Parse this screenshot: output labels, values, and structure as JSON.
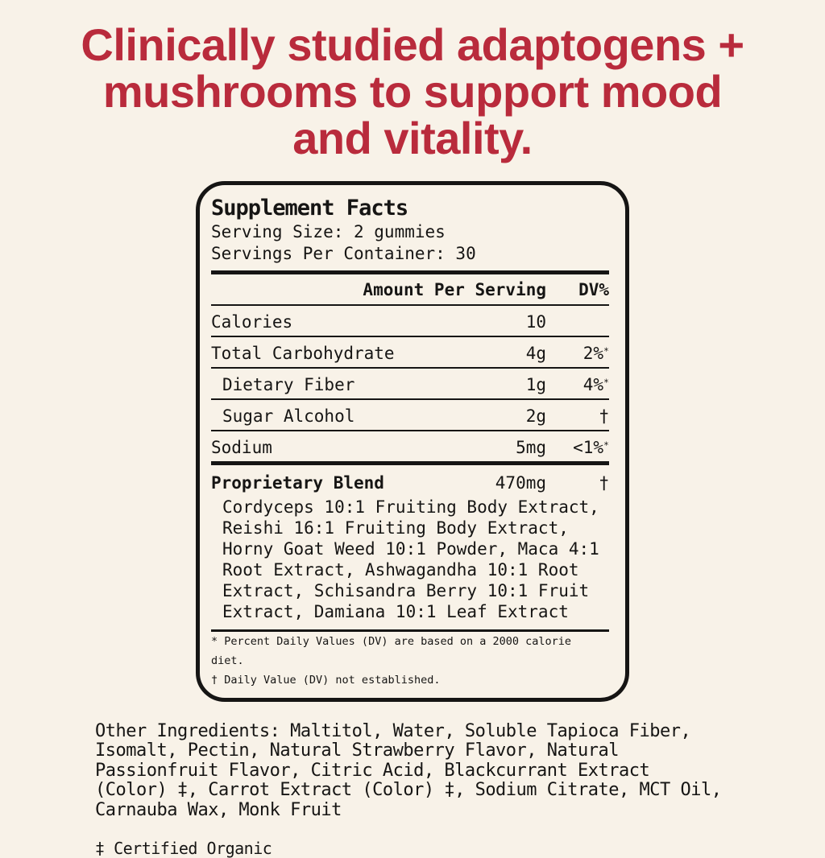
{
  "colors": {
    "background": "#F8F2E8",
    "accent_red": "#B92B3C",
    "ink": "#161514"
  },
  "headline": {
    "lines": [
      "Clinically studied adaptogens +",
      "mushrooms to support mood",
      "and vitality."
    ]
  },
  "supplement_facts": {
    "title": "Supplement Facts",
    "serving_size": "Serving Size: 2 gummies",
    "servings_per_container": "Servings Per Container: 30",
    "columns": {
      "amount": "Amount Per Serving",
      "dv": "DV%"
    },
    "rows": [
      {
        "name": "Calories",
        "amount": "10",
        "dv": "",
        "dv_sup": ""
      },
      {
        "name": "Total Carbohydrate",
        "amount": "4g",
        "dv": "2%",
        "dv_sup": "*"
      },
      {
        "name": "Dietary Fiber",
        "amount": "1g",
        "dv": "4%",
        "dv_sup": "*"
      },
      {
        "name": "Sugar Alcohol",
        "amount": "2g",
        "dv": "†",
        "dv_sup": ""
      },
      {
        "name": "Sodium",
        "amount": "5mg",
        "dv": "<1%",
        "dv_sup": "*"
      }
    ],
    "blend": {
      "name": "Proprietary Blend",
      "amount": "470mg",
      "dv": "†",
      "ingredients": "Cordyceps 10:1 Fruiting Body Extract, Reishi 16:1 Fruiting Body Extract, Horny Goat Weed 10:1 Powder, Maca 4:1 Root Extract, Ashwagandha 10:1 Root Extract, Schisandra Berry 10:1 Fruit Extract, Damiana 10:1 Leaf Extract"
    },
    "footnotes": [
      "* Percent Daily Values (DV) are based on a 2000 calorie diet.",
      "† Daily Value (DV) not established."
    ]
  },
  "other_ingredients": {
    "lines": [
      "Other Ingredients: Maltitol, Water, Soluble Tapioca Fiber,",
      "Isomalt, Pectin, Natural Strawberry Flavor, Natural",
      "Passionfruit Flavor, Citric Acid, Blackcurrant Extract",
      "(Color) ‡, Carrot Extract (Color) ‡, Sodium Citrate, MCT Oil,",
      "Carnauba Wax, Monk Fruit"
    ]
  },
  "organic_note": "‡ Certified Organic"
}
